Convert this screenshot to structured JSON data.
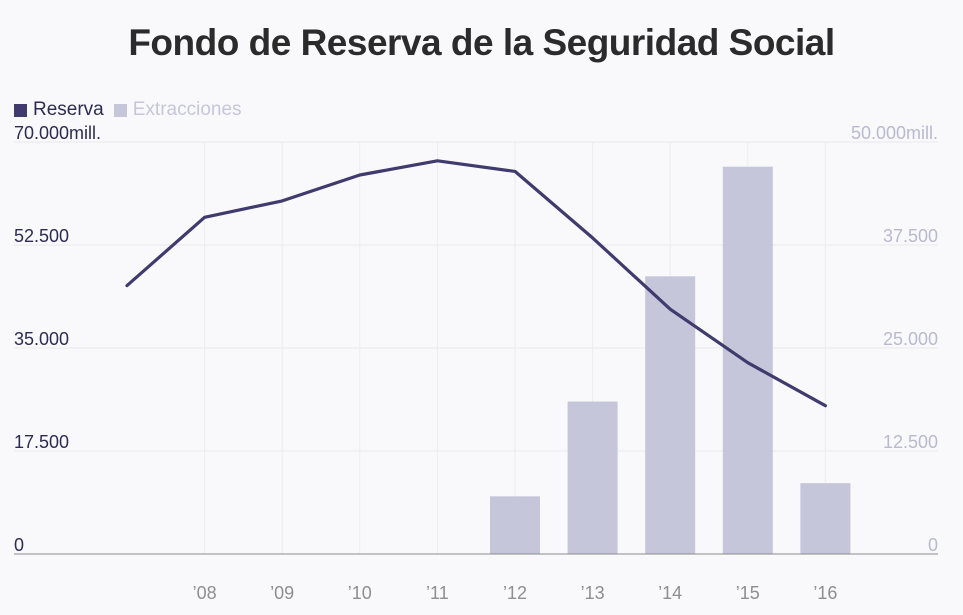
{
  "title": "Fondo de Reserva de la Seguridad Social",
  "legend": [
    {
      "label": "Reserva",
      "color": "#3f3b6e"
    },
    {
      "label": "Extracciones",
      "color": "#c6c6da"
    }
  ],
  "chart_data": {
    "type": "bar+line",
    "grid": true,
    "x_labels": [
      "’08",
      "’09",
      "’10",
      "’11",
      "’12",
      "’13",
      "’14",
      "’15",
      "’16"
    ],
    "left_axis": {
      "ticks": [
        "0",
        "17.500",
        "35.000",
        "52.500",
        "70.000mill."
      ],
      "tick_values": [
        0,
        17500,
        35000,
        52500,
        70000
      ],
      "ylim": [
        0,
        70000
      ],
      "color": "#3f3b6e"
    },
    "right_axis": {
      "ticks": [
        "0",
        "12.500",
        "25.000",
        "37.500",
        "50.000mill."
      ],
      "tick_values": [
        0,
        12500,
        25000,
        37500,
        50000
      ],
      "ylim": [
        0,
        50000
      ],
      "color": "#c6c6da"
    },
    "series": [
      {
        "name": "Reserva",
        "type": "line",
        "axis": "left",
        "x": [
          2007,
          2008,
          2009,
          2010,
          2011,
          2012,
          2013,
          2014,
          2015,
          2016
        ],
        "values": [
          45600,
          57200,
          60000,
          64400,
          66800,
          65000,
          53700,
          41600,
          32500,
          25200
        ],
        "color": "#3f3b6e"
      },
      {
        "name": "Extracciones",
        "type": "bar",
        "axis": "right",
        "x": [
          2012,
          2013,
          2014,
          2015,
          2016
        ],
        "values": [
          7000,
          18500,
          33700,
          47000,
          8600
        ],
        "color": "#c6c6da"
      }
    ]
  }
}
